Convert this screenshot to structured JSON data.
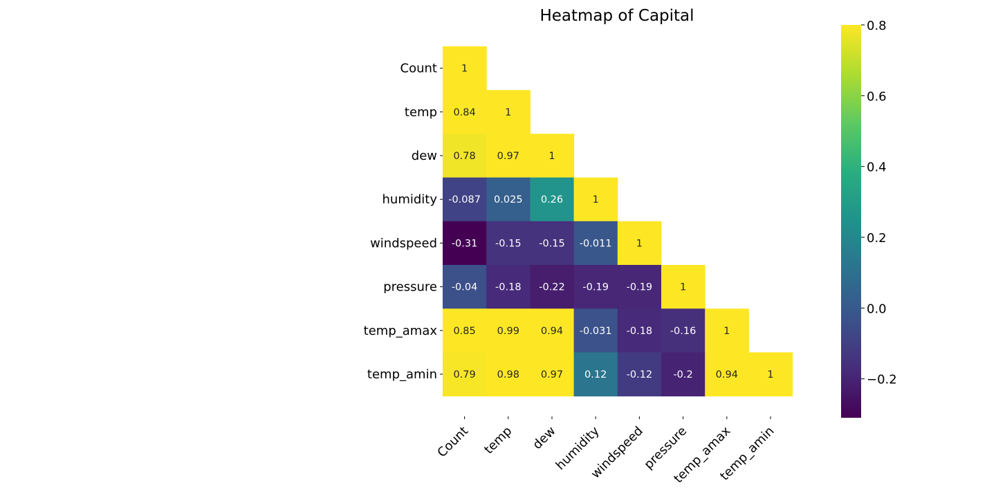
{
  "chart_data": {
    "type": "heatmap",
    "title": "Heatmap of Capital",
    "xlabel": "",
    "ylabel": "",
    "mask": "upper-triangle",
    "row_labels": [
      "Count",
      "temp",
      "dew",
      "humidity",
      "windspeed",
      "pressure",
      "temp_amax",
      "temp_amin"
    ],
    "col_labels": [
      "Count",
      "temp",
      "dew",
      "humidity",
      "windspeed",
      "pressure",
      "temp_amax",
      "temp_amin"
    ],
    "values": [
      [
        1
      ],
      [
        0.84,
        1
      ],
      [
        0.78,
        0.97,
        1
      ],
      [
        -0.087,
        0.025,
        0.26,
        1
      ],
      [
        -0.31,
        -0.15,
        -0.15,
        -0.011,
        1
      ],
      [
        -0.04,
        -0.18,
        -0.22,
        -0.19,
        -0.19,
        1
      ],
      [
        0.85,
        0.99,
        0.94,
        -0.031,
        -0.18,
        -0.16,
        1
      ],
      [
        0.79,
        0.98,
        0.97,
        0.12,
        -0.12,
        -0.2,
        0.94,
        1
      ]
    ],
    "colormap": "viridis",
    "vmin": -0.31,
    "vmax": 0.8,
    "colorbar_ticks": [
      "0.8",
      "0.6",
      "0.4",
      "0.2",
      "0.0",
      "−0.2"
    ],
    "colorbar_tick_values": [
      0.8,
      0.6,
      0.4,
      0.2,
      0.0,
      -0.2
    ]
  }
}
